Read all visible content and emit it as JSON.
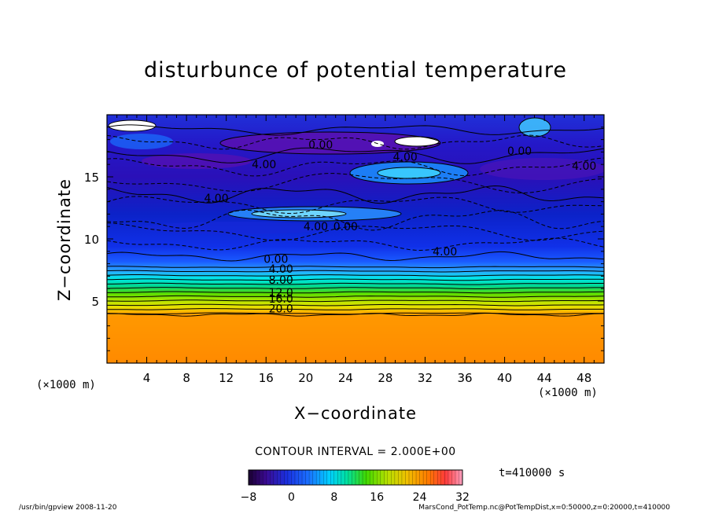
{
  "chart_data": {
    "type": "heatmap",
    "title": "disturbunce of potential temperature",
    "xlabel": "X−coordinate",
    "ylabel": "Z−coordinate",
    "x_unit_label": "(×1000 m)",
    "xlim": [
      0,
      50
    ],
    "ylim": [
      0,
      20
    ],
    "x_ticks": [
      4,
      8,
      12,
      16,
      20,
      24,
      28,
      32,
      36,
      40,
      44,
      48
    ],
    "y_ticks": [
      5,
      10,
      15
    ],
    "contour_interval_label": "CONTOUR INTERVAL = 2.000E+00",
    "time_label": "t=410000 s",
    "colorbar": {
      "min": -8,
      "max": 32,
      "ticks": [
        -8,
        0,
        8,
        16,
        24,
        32
      ]
    },
    "contour_labels": [
      {
        "text": "0.00",
        "x": 21.5,
        "z": 17.6
      },
      {
        "text": "4.00",
        "x": 15.8,
        "z": 16.0
      },
      {
        "text": "4.00",
        "x": 11.0,
        "z": 13.3
      },
      {
        "text": "0.00",
        "x": 41.5,
        "z": 17.1
      },
      {
        "text": "4.00",
        "x": 48.0,
        "z": 15.9
      },
      {
        "text": "4.00",
        "x": 30.0,
        "z": 16.6
      },
      {
        "text": "4.00",
        "x": 21.0,
        "z": 11.0
      },
      {
        "text": "0.00",
        "x": 24.0,
        "z": 11.0
      },
      {
        "text": "4.00",
        "x": 34.0,
        "z": 9.0
      },
      {
        "text": "0.00",
        "x": 17.0,
        "z": 8.4
      },
      {
        "text": "4.00",
        "x": 17.5,
        "z": 7.6
      },
      {
        "text": "8.00",
        "x": 17.5,
        "z": 6.7
      },
      {
        "text": "12.0",
        "x": 17.5,
        "z": 5.7
      },
      {
        "text": "16.0",
        "x": 17.5,
        "z": 5.2
      },
      {
        "text": "20.0",
        "x": 17.5,
        "z": 4.4
      }
    ],
    "footer_left": "/usr/bin/gpview  2008-11-20",
    "footer_right": "MarsCond_PotTemp.nc@PotTempDist,x=0:50000,z=0:20000,t=410000"
  }
}
